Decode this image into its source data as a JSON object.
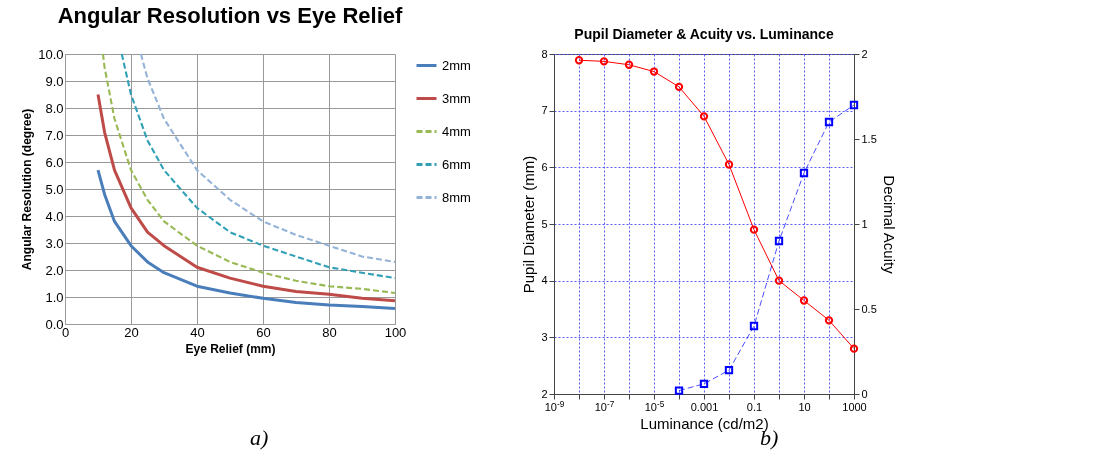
{
  "chart_data": [
    {
      "type": "line",
      "title": "Angular Resolution vs Eye Relief",
      "xlabel": "Eye Relief (mm)",
      "ylabel": "Angular Resolution (degree)",
      "xlim": [
        0,
        100
      ],
      "xticks": [
        0,
        20,
        40,
        60,
        80,
        100
      ],
      "ylim": [
        0,
        10
      ],
      "yticks": [
        {
          "value": 0,
          "label": "0.0"
        },
        {
          "value": 1,
          "label": "1.0"
        },
        {
          "value": 2,
          "label": "2.0"
        },
        {
          "value": 3,
          "label": "3.0"
        },
        {
          "value": 4,
          "label": "4.0"
        },
        {
          "value": 5,
          "label": "5.0"
        },
        {
          "value": 6,
          "label": "6.0"
        },
        {
          "value": 7,
          "label": "7.0"
        },
        {
          "value": 8,
          "label": "8.0"
        },
        {
          "value": 9,
          "label": "9.0"
        },
        {
          "value": 10,
          "label": "10.0"
        }
      ],
      "grid": true,
      "legend": "right",
      "marker": "none",
      "annotations": [
        "a)"
      ],
      "series": [
        {
          "name": "2mm",
          "color": "#4a7ebb",
          "line_style": "solid",
          "x": [
            10,
            12,
            15,
            20,
            25,
            30,
            40,
            50,
            60,
            70,
            80,
            90,
            100
          ],
          "values": [
            5.7,
            4.8,
            3.8,
            2.9,
            2.3,
            1.9,
            1.4,
            1.15,
            0.95,
            0.8,
            0.7,
            0.65,
            0.57
          ]
        },
        {
          "name": "3mm",
          "color": "#be4b48",
          "line_style": "solid",
          "x": [
            10,
            12,
            15,
            20,
            25,
            30,
            40,
            50,
            60,
            70,
            80,
            90,
            100
          ],
          "values": [
            8.5,
            7.1,
            5.7,
            4.3,
            3.4,
            2.9,
            2.1,
            1.7,
            1.4,
            1.2,
            1.1,
            0.95,
            0.86
          ]
        },
        {
          "name": "4mm",
          "color": "#98b954",
          "line_style": "dashed",
          "x": [
            11.5,
            12,
            15,
            20,
            25,
            30,
            40,
            50,
            60,
            70,
            80,
            90,
            100
          ],
          "values": [
            10,
            9.5,
            7.6,
            5.7,
            4.6,
            3.8,
            2.9,
            2.3,
            1.9,
            1.6,
            1.4,
            1.3,
            1.15
          ]
        },
        {
          "name": "6mm",
          "color": "#31a0b6",
          "line_style": "dashed",
          "x": [
            17.2,
            20,
            25,
            30,
            40,
            50,
            60,
            70,
            80,
            90,
            100
          ],
          "values": [
            10,
            8.5,
            6.8,
            5.7,
            4.3,
            3.4,
            2.9,
            2.5,
            2.1,
            1.9,
            1.7
          ]
        },
        {
          "name": "8mm",
          "color": "#95b3d7",
          "line_style": "dashed",
          "x": [
            23,
            25,
            30,
            40,
            50,
            60,
            70,
            80,
            90,
            100
          ],
          "values": [
            10,
            9.1,
            7.6,
            5.7,
            4.6,
            3.8,
            3.3,
            2.9,
            2.5,
            2.3
          ]
        }
      ]
    },
    {
      "type": "line",
      "title": "Pupil Diameter & Acuity vs. Luminance",
      "xlabel": "Luminance (cd/m2)",
      "ylabel": "Pupil Diameter (mm)",
      "y2label": "Decimal Acuity",
      "log": "x",
      "xlim": [
        1e-09,
        1000
      ],
      "xticks": [
        {
          "value": 1e-09,
          "label": "10$^{-9}$"
        },
        {
          "value": 1e-08,
          "label": null
        },
        {
          "value": 1e-07,
          "label": "10$^{-7}$"
        },
        {
          "value": 1e-06,
          "label": null
        },
        {
          "value": 1e-05,
          "label": "10$^{-5}$"
        },
        {
          "value": 0.0001,
          "label": null
        },
        0.001,
        {
          "value": 0.01,
          "label": null
        },
        0.1,
        {
          "value": 1,
          "label": null
        },
        10,
        {
          "value": 100,
          "label": null
        },
        1000
      ],
      "ylim": [
        2,
        8
      ],
      "yticks": [
        2,
        3,
        4,
        5,
        6,
        7,
        8
      ],
      "y2lim": [
        0,
        2
      ],
      "y2ticks": [
        0,
        0.5,
        1,
        1.5,
        2
      ],
      "grid": true,
      "annotations": [
        "b)"
      ],
      "x": [
        1e-08,
        1e-07,
        1e-06,
        1e-05,
        0.0001,
        0.001,
        0.01,
        0.1,
        1,
        10,
        100,
        1000
      ],
      "series": [
        {
          "color": "#ff0000",
          "marker": "circle",
          "line_style": "solid",
          "values": [
            7.89,
            7.87,
            7.81,
            7.69,
            7.42,
            6.9,
            6.05,
            4.9,
            4.0,
            3.65,
            3.3,
            2.8
          ]
        },
        {
          "color": "#0000ff",
          "marker": "square",
          "line_style": "dashed",
          "axis": "y2",
          "values": [
            null,
            null,
            null,
            null,
            0.02,
            0.06,
            0.14,
            0.4,
            0.9,
            1.3,
            1.6,
            1.7
          ]
        }
      ]
    }
  ]
}
